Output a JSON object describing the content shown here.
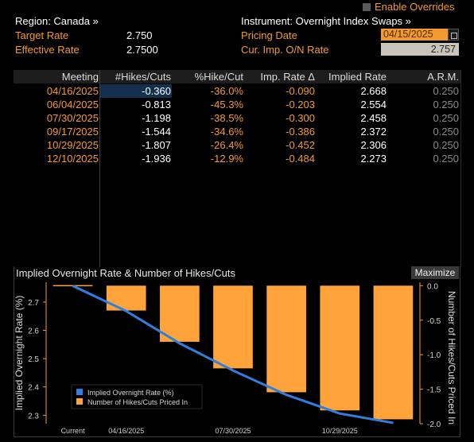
{
  "header": {
    "region": "Region: Canada »",
    "instrument": "Instrument: Overnight Index Swaps »",
    "enable_overrides": "Enable Overrides",
    "target_rate_label": "Target Rate",
    "target_rate_value": "2.750",
    "effective_rate_label": "Effective Rate",
    "effective_rate_value": "2.7500",
    "pricing_date_label": "Pricing Date",
    "pricing_date_value": "04/15/2025",
    "cur_rate_label": "Cur. Imp. O/N Rate",
    "cur_rate_value": "2.757"
  },
  "table": {
    "columns": [
      "Meeting",
      "#Hikes/Cuts",
      "%Hike/Cut",
      "Imp. Rate Δ",
      "Implied Rate",
      "A.R.M."
    ],
    "rows": [
      {
        "meeting": "04/16/2025",
        "hikes": "-0.360",
        "pct": "-36.0%",
        "delta": "-0.090",
        "rate": "2.668",
        "arm": "0.250"
      },
      {
        "meeting": "06/04/2025",
        "hikes": "-0.813",
        "pct": "-45.3%",
        "delta": "-0.203",
        "rate": "2.554",
        "arm": "0.250"
      },
      {
        "meeting": "07/30/2025",
        "hikes": "-1.198",
        "pct": "-38.5%",
        "delta": "-0.300",
        "rate": "2.458",
        "arm": "0.250"
      },
      {
        "meeting": "09/17/2025",
        "hikes": "-1.544",
        "pct": "-34.6%",
        "delta": "-0.386",
        "rate": "2.372",
        "arm": "0.250"
      },
      {
        "meeting": "10/29/2025",
        "hikes": "-1.807",
        "pct": "-26.4%",
        "delta": "-0.452",
        "rate": "2.306",
        "arm": "0.250"
      },
      {
        "meeting": "12/10/2025",
        "hikes": "-1.936",
        "pct": "-12.9%",
        "delta": "-0.484",
        "rate": "2.273",
        "arm": "0.250"
      }
    ]
  },
  "chart": {
    "title": "Implied Overnight Rate & Number of Hikes/Cuts",
    "maximize": "Maximize"
  },
  "colors": {
    "accent": "#f59a2a",
    "line": "#2f7fe0",
    "bar": "#ffa33a"
  },
  "chart_data": {
    "type": "bar+line",
    "title": "Implied Overnight Rate & Number of Hikes/Cuts",
    "x_categories": [
      "Current",
      "04/16/2025",
      "06/04/2025",
      "07/30/2025",
      "09/17/2025",
      "10/29/2025",
      "12/10/2025"
    ],
    "x_tick_labels": [
      "Current",
      "04/16/2025",
      "07/30/2025",
      "10/29/2025"
    ],
    "ylabel_left": "Implied Overnight Rate (%)",
    "ylabel_right": "Number of Hikes/Cuts Priced In",
    "ylim_left": [
      2.27,
      2.77
    ],
    "ylim_right": [
      -2.0,
      0.05
    ],
    "yticks_left": [
      "2.7",
      "2.6",
      "2.5",
      "2.4",
      "2.3"
    ],
    "yticks_right": [
      "0.0",
      "-0.5",
      "-1.0",
      "-1.5",
      "-2.0"
    ],
    "series": [
      {
        "name": "Implied Overnight Rate (%)",
        "axis": "left",
        "type": "line",
        "values": [
          2.757,
          2.668,
          2.554,
          2.458,
          2.372,
          2.306,
          2.273
        ]
      },
      {
        "name": "Number of Hikes/Cuts Priced In",
        "axis": "right",
        "type": "bar",
        "values": [
          null,
          -0.36,
          -0.813,
          -1.198,
          -1.544,
          -1.807,
          -1.936
        ]
      }
    ],
    "legend_position": "bottom-left"
  }
}
